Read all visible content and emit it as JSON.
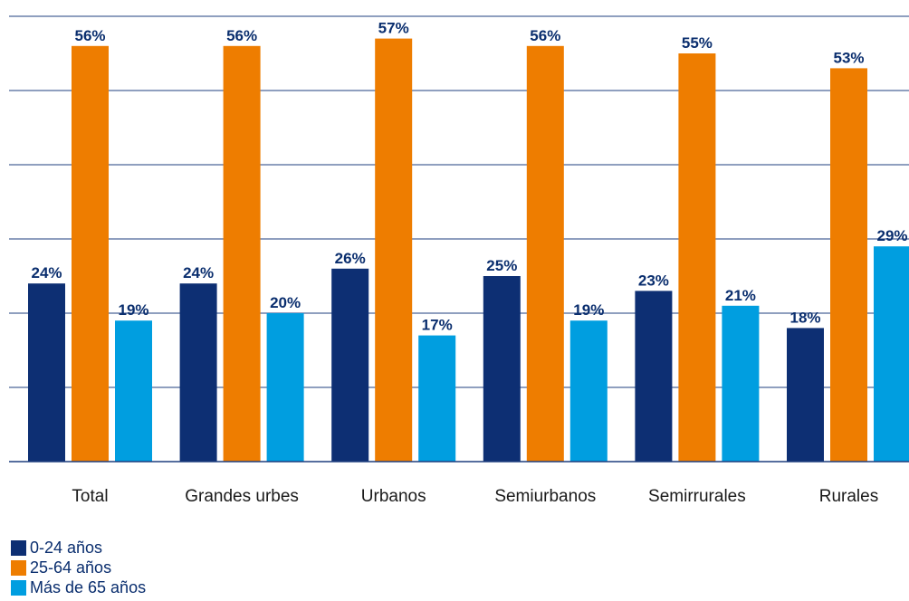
{
  "chart_data": {
    "type": "bar",
    "categories": [
      "Total",
      "Grandes urbes",
      "Urbanos",
      "Semiurbanos",
      "Semirrurales",
      "Rurales"
    ],
    "series": [
      {
        "name": "0-24 años",
        "values": [
          24,
          24,
          26,
          25,
          23,
          18
        ],
        "labels": [
          "24%",
          "24%",
          "26%",
          "25%",
          "23%",
          "18%"
        ],
        "color": "#0d2f73"
      },
      {
        "name": "25-64 años",
        "values": [
          56,
          56,
          57,
          56,
          55,
          53
        ],
        "labels": [
          "56%",
          "56%",
          "57%",
          "56%",
          "55%",
          "53%"
        ],
        "color": "#ee7d00"
      },
      {
        "name": "Más de 65 años",
        "values": [
          19,
          20,
          17,
          19,
          21,
          29
        ],
        "labels": [
          "19%",
          "20%",
          "17%",
          "19%",
          "21%",
          "29%"
        ],
        "color": "#009ee0"
      }
    ],
    "ylim": [
      0,
      60
    ],
    "grid": true,
    "legend_position": "bottom-left",
    "label_color": "#0a2e6e",
    "grid_color": "#1f3f7f"
  }
}
